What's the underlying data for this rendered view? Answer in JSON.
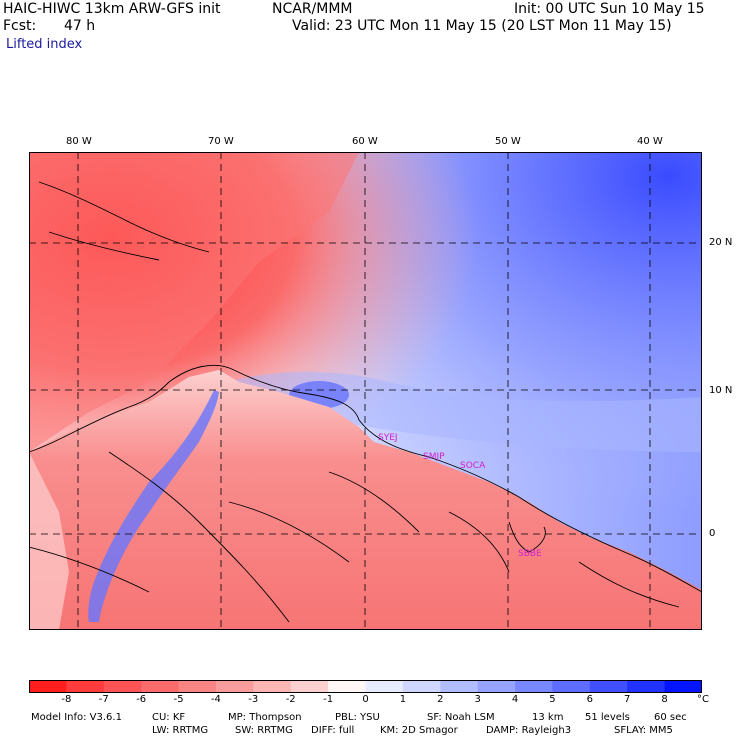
{
  "header": {
    "model": "HAIC-HIWC 13km ARW-GFS init",
    "center": "NCAR/MMM",
    "init": "Init: 00 UTC Sun 10 May 15",
    "fcst_label": "Fcst:",
    "fcst_value": "47 h",
    "valid": "Valid: 23 UTC Mon 11 May 15 (20 LST Mon 11 May 15)",
    "field": "Lifted index"
  },
  "map": {
    "lon_labels": [
      "80 W",
      "70 W",
      "60 W",
      "50 W",
      "40 W"
    ],
    "lat_labels": [
      "20 N",
      "10 N",
      "0"
    ],
    "stations": [
      "SYEJ",
      "SMJP",
      "SOCA",
      "SBBE"
    ],
    "station_color": "#d020d0"
  },
  "colorbar": {
    "ticks": [
      "-8",
      "-7",
      "-6",
      "-5",
      "-4",
      "-3",
      "-2",
      "-1",
      "0",
      "1",
      "2",
      "3",
      "4",
      "5",
      "6",
      "7",
      "8"
    ],
    "unit": "°C",
    "colors": [
      "#ff1e1e",
      "#ff3b3b",
      "#fd5555",
      "#fb6b6b",
      "#f98484",
      "#f99c9c",
      "#fbb5b5",
      "#fdd0d0",
      "#fff6f6",
      "#e8ecff",
      "#cfd6ff",
      "#b2bdff",
      "#97a4ff",
      "#7a88ff",
      "#5e6cff",
      "#4050ff",
      "#2233ff",
      "#0414ff"
    ]
  },
  "footer": {
    "line1": [
      "Model Info: V3.6.1",
      "CU: KF",
      "MP: Thompson",
      "PBL: YSU",
      "SF: Noah LSM",
      "13 km",
      "51 levels",
      "60 sec"
    ],
    "line2": [
      "LW: RRTMG",
      "SW: RRTMG",
      "DIFF: full",
      "KM: 2D Smagor",
      "DAMP: Rayleigh3",
      "SFLAY: MM5"
    ]
  }
}
